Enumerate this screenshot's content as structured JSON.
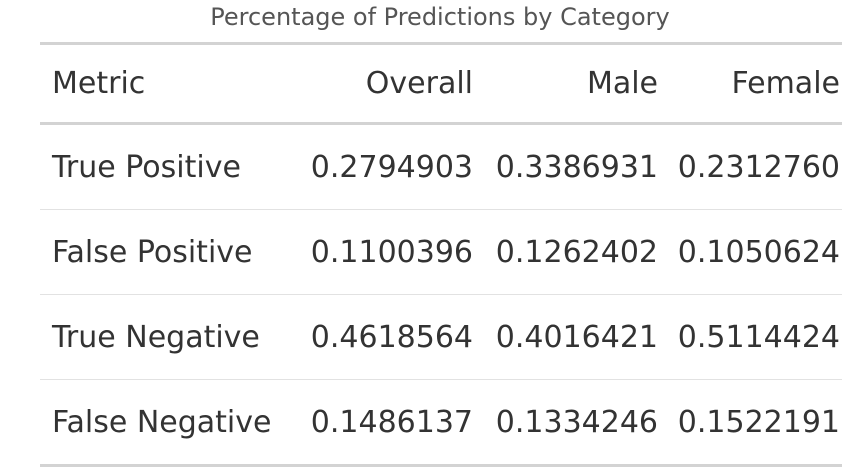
{
  "chart_data": {
    "type": "table",
    "title": "Percentage of Predictions by Category",
    "columns": [
      "Metric",
      "Overall",
      "Male",
      "Female"
    ],
    "rows": [
      [
        "True Positive",
        "0.2794903",
        "0.3386931",
        "0.2312760"
      ],
      [
        "False Positive",
        "0.1100396",
        "0.1262402",
        "0.1050624"
      ],
      [
        "True Negative",
        "0.4618564",
        "0.4016421",
        "0.5114424"
      ],
      [
        "False Negative",
        "0.1486137",
        "0.1334246",
        "0.1522191"
      ]
    ]
  }
}
